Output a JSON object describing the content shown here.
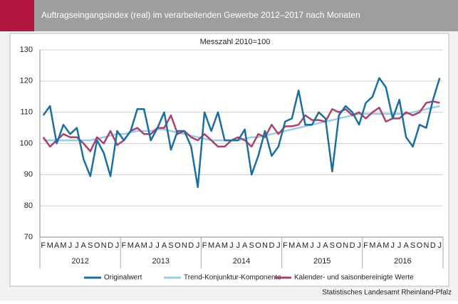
{
  "chart_data": {
    "type": "line",
    "title": "Auftragseingangsindex (real) im verarbeitenden Gewerbe 2012–2017 nach Monaten",
    "subtitle": "Messzahl 2010=100",
    "source": "Statistisches Landesamt Rheinland-Pfalz",
    "categories": [
      "F",
      "M",
      "A",
      "M",
      "J",
      "J",
      "A",
      "S",
      "O",
      "N",
      "D",
      "J",
      "F",
      "M",
      "A",
      "M",
      "J",
      "J",
      "A",
      "S",
      "O",
      "N",
      "D",
      "J",
      "F",
      "M",
      "A",
      "M",
      "J",
      "J",
      "A",
      "S",
      "O",
      "N",
      "D",
      "J",
      "F",
      "M",
      "A",
      "M",
      "J",
      "J",
      "A",
      "S",
      "O",
      "N",
      "D",
      "J",
      "F",
      "M",
      "A",
      "M",
      "J",
      "J",
      "A",
      "S",
      "O",
      "N",
      "D",
      "J"
    ],
    "years": [
      "2012",
      "2013",
      "2014",
      "2015",
      "2016"
    ],
    "ylim": [
      70,
      130
    ],
    "yticks": [
      70,
      80,
      90,
      100,
      110,
      120,
      130
    ],
    "grid": true,
    "series": [
      {
        "name": "Originalwert",
        "color": "#1b6f9f",
        "values": [
          109,
          112,
          100,
          106,
          103,
          105,
          95,
          89.5,
          101,
          97,
          89.5,
          104,
          101,
          104,
          111,
          111,
          101,
          105,
          110,
          98,
          104,
          104,
          99,
          86,
          110,
          104,
          110,
          101,
          101,
          101,
          104.5,
          90,
          96,
          104,
          96,
          99,
          107,
          108,
          117,
          106,
          106,
          110,
          108,
          91,
          109,
          112,
          110,
          106,
          113,
          115,
          121,
          118,
          108,
          114,
          102,
          99,
          106,
          105,
          114,
          121
        ]
      },
      {
        "name": "Trend-Konjunktur-Komponente",
        "color": "#9ccbe3",
        "values": [
          101,
          101,
          101,
          101,
          101,
          101,
          101,
          101,
          101.5,
          102,
          102.5,
          103,
          103,
          103.5,
          104,
          104,
          104,
          104.5,
          104.5,
          104,
          103.5,
          103,
          102.5,
          102,
          101.5,
          101,
          101,
          101,
          101,
          101,
          101.5,
          102,
          102,
          102.5,
          103,
          103.5,
          104,
          104.5,
          105,
          105.5,
          106,
          106.5,
          107,
          107.5,
          108,
          108.5,
          109,
          109.5,
          109.5,
          109.5,
          109.5,
          109.5,
          109.5,
          109.5,
          109.5,
          110,
          110.5,
          111,
          111.5,
          112
        ]
      },
      {
        "name": "Kalender- und saisonbereinigte Werte",
        "color": "#a9426f",
        "values": [
          102,
          99,
          101,
          103,
          102,
          102,
          100,
          97.5,
          102,
          100,
          104,
          99.5,
          101,
          104,
          105,
          103,
          103,
          105,
          105,
          109,
          103,
          104,
          102,
          101,
          103,
          101,
          99,
          99,
          101,
          102,
          101,
          99,
          103,
          102,
          106,
          103,
          105.5,
          105.5,
          106,
          109,
          107.5,
          107.5,
          107,
          111,
          110,
          111,
          109,
          110,
          108,
          110,
          111.5,
          107,
          108,
          108,
          110,
          109,
          110,
          113,
          113.5,
          113
        ]
      }
    ]
  }
}
